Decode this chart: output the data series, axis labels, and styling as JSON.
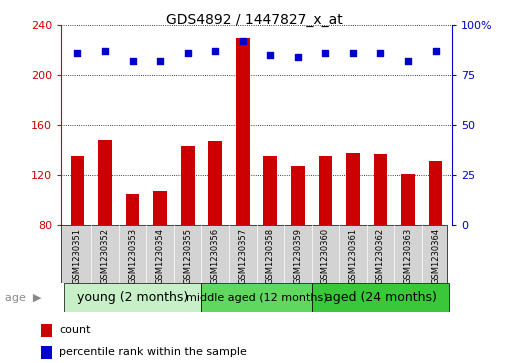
{
  "title": "GDS4892 / 1447827_x_at",
  "samples": [
    "GSM1230351",
    "GSM1230352",
    "GSM1230353",
    "GSM1230354",
    "GSM1230355",
    "GSM1230356",
    "GSM1230357",
    "GSM1230358",
    "GSM1230359",
    "GSM1230360",
    "GSM1230361",
    "GSM1230362",
    "GSM1230363",
    "GSM1230364"
  ],
  "counts": [
    135,
    148,
    105,
    107,
    143,
    147,
    230,
    135,
    127,
    135,
    138,
    137,
    121,
    131
  ],
  "percentiles": [
    86,
    87,
    82,
    82,
    86,
    87,
    92,
    85,
    84,
    86,
    86,
    86,
    82,
    87
  ],
  "ylim_left": [
    80,
    240
  ],
  "ylim_right": [
    0,
    100
  ],
  "yticks_left": [
    80,
    120,
    160,
    200,
    240
  ],
  "yticks_right": [
    0,
    25,
    50,
    75,
    100
  ],
  "bar_color": "#cc0000",
  "dot_color": "#0000cc",
  "groups": [
    {
      "label": "young (2 months)",
      "start": 0,
      "end": 5,
      "color": "#c8f0c8"
    },
    {
      "label": "middle aged (12 months)",
      "start": 5,
      "end": 9,
      "color": "#60d860"
    },
    {
      "label": "aged (24 months)",
      "start": 9,
      "end": 14,
      "color": "#3ac83a"
    }
  ],
  "age_label": "age",
  "legend_count_label": "count",
  "legend_percentile_label": "percentile rank within the sample",
  "background_color": "#ffffff",
  "tick_area_color": "#d3d3d3",
  "group_text_sizes": [
    9,
    8,
    9
  ],
  "right_axis_label_100": "100%"
}
